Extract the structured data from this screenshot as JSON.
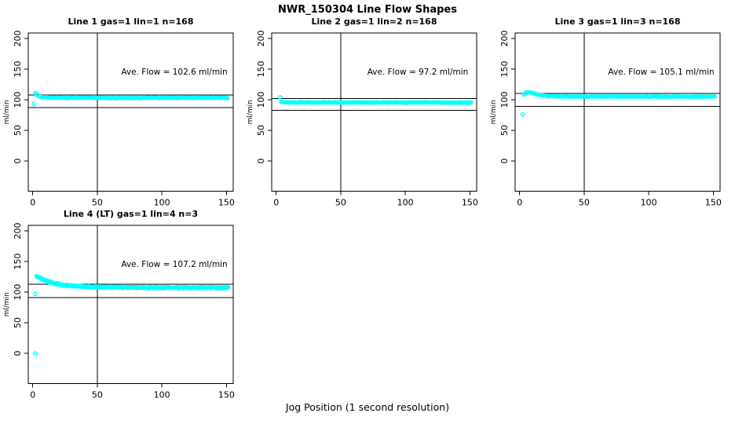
{
  "page": {
    "title": "NWR_150304  Line Flow Shapes",
    "xlabel": "Jog Position (1 second resolution)"
  },
  "chart_data": {
    "type": "scatter",
    "title": "NWR_150304  Line Flow Shapes",
    "xlabel": "Jog Position (1 second resolution)",
    "ylabel": "ml/min",
    "point_color": "#00ffff",
    "grid": false,
    "legend": "none",
    "x_ticks": [
      0,
      50,
      100,
      150
    ],
    "y_ticks": [
      0,
      50,
      100,
      150,
      200
    ],
    "xlim": [
      -4,
      155
    ],
    "ylim": [
      -45,
      210
    ],
    "subplots": [
      {
        "title": "Line 1 gas=1 lin=1 n=168",
        "line": 1,
        "gas": 1,
        "lin": 1,
        "n": 168,
        "ave_flow": 102.6,
        "ave_flow_text": "Ave. Flow =  102.6  ml/min",
        "vline_x": 50,
        "hlines": [
          107.7,
          87.2
        ],
        "outliers": [
          [
            1,
            93
          ]
        ],
        "trend": [
          [
            2,
            111.5
          ],
          [
            3,
            109
          ],
          [
            4,
            107
          ],
          [
            6,
            104.8
          ],
          [
            9,
            103.8
          ],
          [
            14,
            103.3
          ],
          [
            25,
            103.1
          ],
          [
            151,
            103.1
          ]
        ],
        "x_end": 151,
        "jitter": 0.5,
        "points_per_x": 1,
        "grid_pos": [
          0,
          0
        ]
      },
      {
        "title": "Line 2 gas=1 lin=2 n=168",
        "line": 2,
        "gas": 1,
        "lin": 2,
        "n": 168,
        "ave_flow": 97.2,
        "ave_flow_text": "Ave. Flow =  97.2  ml/min",
        "vline_x": 50,
        "hlines": [
          102.1,
          82.6
        ],
        "outliers": [
          [
            3,
            104
          ]
        ],
        "trend": [
          [
            4,
            96.5
          ],
          [
            6,
            95.9
          ],
          [
            10,
            95.6
          ],
          [
            151,
            95.4
          ]
        ],
        "x_end": 151,
        "jitter": 0.5,
        "points_per_x": 1,
        "grid_pos": [
          0,
          1
        ]
      },
      {
        "title": "Line 3 gas=1 lin=3 n=168",
        "line": 3,
        "gas": 1,
        "lin": 3,
        "n": 168,
        "ave_flow": 105.1,
        "ave_flow_text": "Ave. Flow =  105.1  ml/min",
        "vline_x": 50,
        "hlines": [
          110.4,
          89.3
        ],
        "outliers": [
          [
            2.5,
            76
          ]
        ],
        "trend": [
          [
            3,
            108.5
          ],
          [
            5,
            111.5
          ],
          [
            7,
            112.3
          ],
          [
            9,
            111.3
          ],
          [
            13,
            108.8
          ],
          [
            18,
            106.8
          ],
          [
            28,
            105.6
          ],
          [
            45,
            105.2
          ],
          [
            151,
            105.2
          ]
        ],
        "x_end": 151,
        "jitter": 0.5,
        "points_per_x": 1,
        "grid_pos": [
          0,
          2
        ]
      },
      {
        "title": "Line 4 (LT) gas=1 lin=4 n=3",
        "line": 4,
        "gas": 1,
        "lin": 4,
        "n": 3,
        "ave_flow": 107.2,
        "ave_flow_text": "Ave. Flow =  107.2  ml/min",
        "vline_x": 50,
        "hlines": [
          112.6,
          91.1
        ],
        "outliers": [
          [
            2,
            97
          ],
          [
            2,
            0
          ]
        ],
        "trend": [
          [
            3,
            125
          ],
          [
            5,
            123.5
          ],
          [
            8,
            120.5
          ],
          [
            12,
            117
          ],
          [
            18,
            113.5
          ],
          [
            28,
            110.5
          ],
          [
            45,
            108.5
          ],
          [
            70,
            107.6
          ],
          [
            110,
            107.2
          ],
          [
            151,
            107
          ]
        ],
        "x_end": 151,
        "jitter": 1.1,
        "points_per_x": 2,
        "grid_pos": [
          1,
          0
        ]
      }
    ]
  }
}
